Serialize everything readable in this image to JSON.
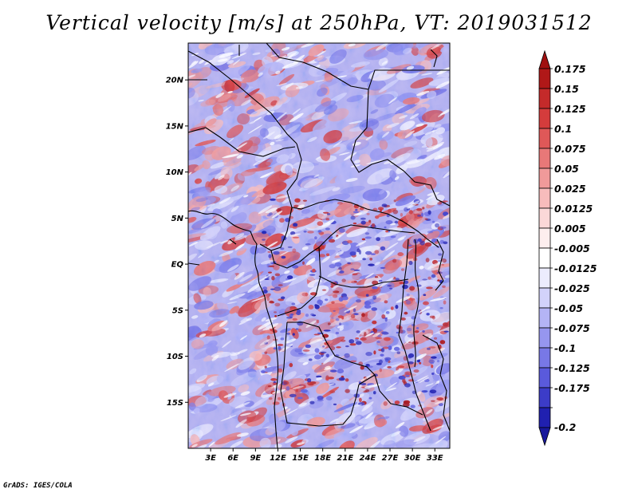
{
  "title": "Vertical velocity [m/s] at 250hPa, VT: 2019031512",
  "footer": "GrADS: IGES/COLA",
  "map": {
    "projection": "latlon",
    "lon_range": [
      0,
      35
    ],
    "lat_range": [
      -20,
      24
    ],
    "lat_ticks": [
      {
        "value": 20,
        "label": "20N"
      },
      {
        "value": 15,
        "label": "15N"
      },
      {
        "value": 10,
        "label": "10N"
      },
      {
        "value": 5,
        "label": "5N"
      },
      {
        "value": 0,
        "label": "EQ"
      },
      {
        "value": -5,
        "label": "5S"
      },
      {
        "value": -10,
        "label": "10S"
      },
      {
        "value": -15,
        "label": "15S"
      }
    ],
    "lon_ticks": [
      {
        "value": 3,
        "label": "3E"
      },
      {
        "value": 6,
        "label": "6E"
      },
      {
        "value": 9,
        "label": "9E"
      },
      {
        "value": 12,
        "label": "12E"
      },
      {
        "value": 15,
        "label": "15E"
      },
      {
        "value": 18,
        "label": "18E"
      },
      {
        "value": 21,
        "label": "21E"
      },
      {
        "value": 24,
        "label": "24E"
      },
      {
        "value": 27,
        "label": "27E"
      },
      {
        "value": 30,
        "label": "30E"
      },
      {
        "value": 33,
        "label": "33E"
      }
    ]
  },
  "colorbar": {
    "levels": [
      {
        "label": "0.175",
        "color": "#b01818"
      },
      {
        "label": "0.15",
        "color": "#c42a2a"
      },
      {
        "label": "0.125",
        "color": "#d43c3c"
      },
      {
        "label": "0.1",
        "color": "#df5858"
      },
      {
        "label": "0.075",
        "color": "#e87878"
      },
      {
        "label": "0.05",
        "color": "#f09a9a"
      },
      {
        "label": "0.025",
        "color": "#f7bcbc"
      },
      {
        "label": "0.0125",
        "color": "#fbd8d8"
      },
      {
        "label": "0.005",
        "color": "#fdeeee"
      },
      {
        "label": "-0.005",
        "color": "#ffffff"
      },
      {
        "label": "-0.0125",
        "color": "#ececfd"
      },
      {
        "label": "-0.025",
        "color": "#d2d2fa"
      },
      {
        "label": "-0.05",
        "color": "#b4b4f5"
      },
      {
        "label": "-0.075",
        "color": "#9696ef"
      },
      {
        "label": "-0.1",
        "color": "#7878e6"
      },
      {
        "label": "-0.125",
        "color": "#5a5adc"
      },
      {
        "label": "-0.175",
        "color": "#3c3cc8"
      },
      {
        "label": "-0.2",
        "color": "#2020b0"
      }
    ],
    "top_color": "#a01010",
    "bottom_color": "#18189c"
  }
}
